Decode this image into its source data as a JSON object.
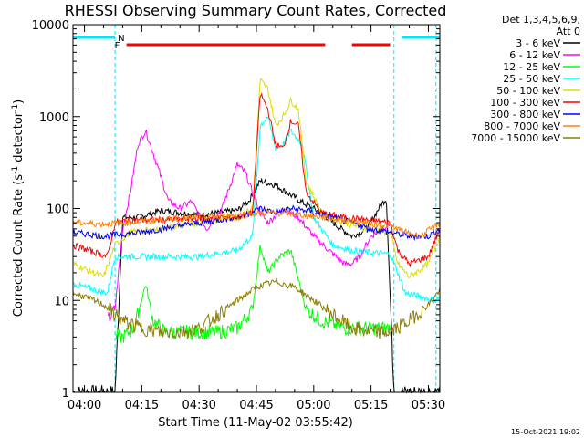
{
  "chart_data": {
    "type": "line",
    "title": "RHESSI Observing Summary Count Rates, Corrected",
    "xlabel": "Start Time (11-May-02 03:55:42)",
    "ylabel_main": "Corrected Count Rate (s",
    "ylabel_sup1": "-1",
    "ylabel_mid": " detector",
    "ylabel_sup2": "-1",
    "ylabel_end": ")",
    "yscale": "log",
    "ylim": [
      1,
      10000
    ],
    "xlim": [
      "03:57",
      "05:33"
    ],
    "x_ticks": [
      "04:00",
      "04:15",
      "04:30",
      "04:45",
      "05:00",
      "05:15",
      "05:30"
    ],
    "y_ticks": [
      "1",
      "10",
      "100",
      "1000",
      "10000"
    ],
    "legend_header": [
      "Det 1,3,4,5,6,9,",
      "Att 0"
    ],
    "footer_stamp": "15-Oct-2021 19:02",
    "flag_labels": {
      "night": "N",
      "flare": "F"
    },
    "flare_bars": [
      [
        "04:11",
        "05:03"
      ],
      [
        "05:10",
        "05:20"
      ]
    ],
    "night_flag_bars": [
      [
        "03:57",
        "04:08"
      ],
      [
        "05:23",
        "05:33"
      ]
    ],
    "night_boundaries": [
      "03:57",
      "04:08",
      "05:21",
      "05:32"
    ],
    "series": [
      {
        "name": "3 - 6 keV",
        "color": "#000000",
        "x": [
          "03:57",
          "04:08",
          "04:10",
          "04:14",
          "04:20",
          "04:25",
          "04:30",
          "04:35",
          "04:40",
          "04:43",
          "04:46",
          "04:50",
          "04:54",
          "04:58",
          "05:02",
          "05:06",
          "05:10",
          "05:14",
          "05:17",
          "05:19",
          "05:21",
          "05:32",
          "05:33"
        ],
        "y": [
          1,
          1,
          80,
          80,
          95,
          90,
          85,
          90,
          95,
          120,
          200,
          180,
          140,
          110,
          90,
          65,
          50,
          60,
          100,
          130,
          1,
          1,
          1
        ]
      },
      {
        "name": "6 - 12 keV",
        "color": "#ff00ff",
        "x": [
          "04:06",
          "04:08",
          "04:10",
          "04:12",
          "04:14",
          "04:16",
          "04:19",
          "04:22",
          "04:25",
          "04:28",
          "04:32",
          "04:36",
          "04:40",
          "04:42",
          "04:44",
          "04:46",
          "04:48",
          "04:52",
          "04:56",
          "05:00",
          "05:04",
          "05:08",
          "05:10",
          "05:12",
          "05:15",
          "05:18",
          "05:20"
        ],
        "y": [
          6,
          8,
          60,
          150,
          500,
          700,
          300,
          120,
          100,
          120,
          60,
          100,
          300,
          250,
          150,
          90,
          70,
          100,
          80,
          50,
          35,
          25,
          25,
          30,
          50,
          60,
          70
        ]
      },
      {
        "name": "12 - 25 keV",
        "color": "#00ff00",
        "x": [
          "04:08",
          "04:10",
          "04:13",
          "04:16",
          "04:18",
          "04:21",
          "04:25",
          "04:30",
          "04:35",
          "04:40",
          "04:44",
          "04:46",
          "04:48",
          "04:51",
          "04:54",
          "04:58",
          "05:02",
          "05:08",
          "05:14",
          "05:20"
        ],
        "y": [
          4,
          4,
          5,
          15,
          6,
          4.5,
          4.5,
          4.5,
          4.5,
          5,
          8,
          40,
          20,
          30,
          35,
          8,
          6,
          5,
          5,
          5
        ]
      },
      {
        "name": "25 - 50 keV",
        "color": "#00ffff",
        "x": [
          "03:57",
          "04:06",
          "04:08",
          "04:12",
          "04:20",
          "04:30",
          "04:40",
          "04:44",
          "04:46",
          "04:48",
          "04:50",
          "04:52",
          "04:54",
          "04:57",
          "05:00",
          "05:05",
          "05:10",
          "05:15",
          "05:20",
          "05:22",
          "05:24",
          "05:32",
          "05:33"
        ],
        "y": [
          15,
          12,
          30,
          30,
          30,
          30,
          35,
          50,
          800,
          1000,
          450,
          500,
          700,
          500,
          80,
          40,
          35,
          33,
          32,
          20,
          12,
          10,
          11
        ]
      },
      {
        "name": "50 - 100 keV",
        "color": "#dddd00",
        "x": [
          "03:57",
          "04:05",
          "04:08",
          "04:12",
          "04:20",
          "04:30",
          "04:40",
          "04:44",
          "04:46",
          "04:48",
          "04:50",
          "04:52",
          "04:54",
          "04:56",
          "04:58",
          "05:02",
          "05:08",
          "05:14",
          "05:20",
          "05:22",
          "05:25",
          "05:30",
          "05:33"
        ],
        "y": [
          25,
          18,
          40,
          55,
          60,
          70,
          80,
          100,
          2500,
          2000,
          800,
          1000,
          1500,
          1200,
          200,
          90,
          70,
          60,
          55,
          25,
          18,
          25,
          50
        ]
      },
      {
        "name": "100 - 300 keV",
        "color": "#ff0000",
        "x": [
          "03:57",
          "04:06",
          "04:08",
          "04:12",
          "04:20",
          "04:30",
          "04:40",
          "04:44",
          "04:46",
          "04:48",
          "04:50",
          "04:52",
          "04:54",
          "04:56",
          "04:58",
          "05:02",
          "05:08",
          "05:14",
          "05:20",
          "05:22",
          "05:25",
          "05:30",
          "05:33"
        ],
        "y": [
          40,
          30,
          70,
          75,
          75,
          78,
          80,
          90,
          1800,
          1200,
          500,
          450,
          900,
          800,
          150,
          90,
          80,
          75,
          70,
          35,
          25,
          30,
          60
        ]
      },
      {
        "name": "300 - 800 keV",
        "color": "#0000ff",
        "x": [
          "03:57",
          "04:05",
          "04:15",
          "04:25",
          "04:35",
          "04:42",
          "04:46",
          "04:50",
          "04:54",
          "04:58",
          "05:05",
          "05:10",
          "05:15",
          "05:20",
          "05:25",
          "05:30",
          "05:33"
        ],
        "y": [
          55,
          50,
          55,
          65,
          75,
          85,
          100,
          90,
          100,
          95,
          80,
          70,
          60,
          55,
          50,
          50,
          60
        ]
      },
      {
        "name": "800 - 7000 keV",
        "color": "#ff8000",
        "x": [
          "03:57",
          "04:05",
          "04:15",
          "04:25",
          "04:35",
          "04:42",
          "04:48",
          "04:54",
          "05:00",
          "05:08",
          "05:15",
          "05:20",
          "05:24",
          "05:28",
          "05:33"
        ],
        "y": [
          70,
          68,
          72,
          78,
          82,
          87,
          90,
          88,
          82,
          75,
          68,
          65,
          55,
          50,
          70
        ]
      },
      {
        "name": "7000 - 15000 keV",
        "color": "#8b7d00",
        "x": [
          "03:57",
          "04:00",
          "04:05",
          "04:10",
          "04:15",
          "04:20",
          "04:25",
          "04:30",
          "04:35",
          "04:40",
          "04:45",
          "04:50",
          "04:55",
          "05:00",
          "05:05",
          "05:10",
          "05:15",
          "05:20",
          "05:25",
          "05:30",
          "05:33"
        ],
        "y": [
          12,
          11,
          9,
          6,
          5,
          4.5,
          4.5,
          5,
          7,
          10,
          14,
          16,
          14,
          10,
          7,
          5,
          4.5,
          4.5,
          6,
          9,
          13
        ]
      }
    ]
  }
}
